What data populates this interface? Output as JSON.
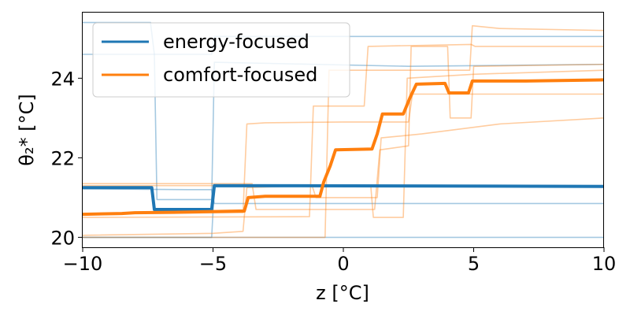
{
  "chart_data": {
    "type": "line",
    "xlabel": "z [°C]",
    "ylabel": "θ₂* [°C]",
    "xlim": [
      -10,
      10
    ],
    "ylim": [
      19.75,
      25.65
    ],
    "x_ticks": [
      -10,
      -5,
      0,
      5,
      10
    ],
    "x_tick_labels": [
      "−10",
      "−5",
      "0",
      "5",
      "10"
    ],
    "y_ticks": [
      20,
      22,
      24
    ],
    "y_tick_labels": [
      "20",
      "22",
      "24"
    ],
    "grid": false,
    "legend_position": "top-left",
    "colors": {
      "energy": "#1f77b4",
      "comfort": "#ff7f0e"
    },
    "series": [
      {
        "name": "energy-focused",
        "role": "mean",
        "group": "energy",
        "points": [
          [
            -10,
            21.25
          ],
          [
            -7.35,
            21.25
          ],
          [
            -7.25,
            20.7
          ],
          [
            -5.05,
            20.7
          ],
          [
            -4.95,
            21.3
          ],
          [
            10,
            21.28
          ]
        ]
      },
      {
        "name": "comfort-focused",
        "role": "mean",
        "group": "comfort",
        "points": [
          [
            -10,
            20.58
          ],
          [
            -8.5,
            20.6
          ],
          [
            -8,
            20.62
          ],
          [
            -6.5,
            20.63
          ],
          [
            -4,
            20.66
          ],
          [
            -3.8,
            20.66
          ],
          [
            -3.65,
            21.0
          ],
          [
            -3,
            21.03
          ],
          [
            -0.9,
            21.03
          ],
          [
            -0.75,
            21.4
          ],
          [
            -0.5,
            21.8
          ],
          [
            -0.3,
            22.2
          ],
          [
            1.1,
            22.22
          ],
          [
            1.3,
            22.6
          ],
          [
            1.5,
            23.1
          ],
          [
            2.3,
            23.1
          ],
          [
            2.55,
            23.5
          ],
          [
            2.8,
            23.85
          ],
          [
            3.9,
            23.87
          ],
          [
            4.05,
            23.63
          ],
          [
            4.8,
            23.63
          ],
          [
            4.95,
            23.93
          ],
          [
            7,
            23.93
          ],
          [
            10,
            23.96
          ]
        ]
      },
      {
        "role": "sample",
        "group": "energy",
        "points": [
          [
            -10,
            25.4
          ],
          [
            -7.4,
            25.4
          ],
          [
            -7.25,
            24.6
          ],
          [
            -7.15,
            20.95
          ],
          [
            -5.05,
            20.95
          ],
          [
            -4.95,
            24.4
          ],
          [
            2.5,
            24.3
          ],
          [
            10,
            24.35
          ]
        ]
      },
      {
        "role": "sample",
        "group": "energy",
        "points": [
          [
            -10,
            24.6
          ],
          [
            -5.05,
            24.6
          ],
          [
            -4.95,
            25.05
          ],
          [
            10,
            25.05
          ]
        ]
      },
      {
        "role": "sample",
        "group": "energy",
        "points": [
          [
            -10,
            20.0
          ],
          [
            -5.05,
            20.0
          ],
          [
            -4.95,
            21.32
          ],
          [
            10,
            21.3
          ]
        ]
      },
      {
        "role": "sample",
        "group": "energy",
        "points": [
          [
            -10,
            21.22
          ],
          [
            -6,
            21.2
          ],
          [
            -5.05,
            21.2
          ],
          [
            -4.95,
            20.85
          ],
          [
            10,
            20.85
          ]
        ]
      },
      {
        "role": "sample",
        "group": "energy",
        "points": [
          [
            -10,
            20.0
          ],
          [
            10,
            20.0
          ]
        ]
      },
      {
        "role": "sample",
        "group": "comfort",
        "points": [
          [
            -10,
            20.6
          ],
          [
            -3.85,
            20.62
          ],
          [
            -3.7,
            22.85
          ],
          [
            -3,
            22.88
          ],
          [
            0,
            22.9
          ],
          [
            2.5,
            22.9
          ],
          [
            2.65,
            23.6
          ],
          [
            10,
            23.6
          ]
        ]
      },
      {
        "role": "sample",
        "group": "comfort",
        "points": [
          [
            -10,
            20.0
          ],
          [
            -0.7,
            20.0
          ],
          [
            -0.55,
            24.2
          ],
          [
            4.85,
            24.2
          ],
          [
            4.95,
            25.32
          ],
          [
            6,
            25.25
          ],
          [
            10,
            25.2
          ]
        ]
      },
      {
        "role": "sample",
        "group": "comfort",
        "points": [
          [
            -10,
            21.35
          ],
          [
            -5,
            21.35
          ],
          [
            -3.5,
            21.35
          ],
          [
            -3.35,
            20.7
          ],
          [
            0,
            20.7
          ],
          [
            1.2,
            20.7
          ],
          [
            1.4,
            22.2
          ],
          [
            2.5,
            22.3
          ],
          [
            2.6,
            24.8
          ],
          [
            4,
            24.8
          ],
          [
            4.1,
            23.0
          ],
          [
            4.9,
            23.0
          ],
          [
            5,
            24.3
          ],
          [
            10,
            24.35
          ]
        ]
      },
      {
        "role": "sample",
        "group": "comfort",
        "points": [
          [
            -10,
            20.05
          ],
          [
            -5,
            20.1
          ],
          [
            -3.85,
            20.15
          ],
          [
            -3.7,
            21.25
          ],
          [
            -1.2,
            21.3
          ],
          [
            -1.05,
            21.0
          ],
          [
            1.3,
            21.0
          ],
          [
            1.45,
            22.5
          ],
          [
            3,
            22.6
          ],
          [
            6,
            22.85
          ],
          [
            10,
            23.0
          ]
        ]
      },
      {
        "role": "sample",
        "group": "comfort",
        "points": [
          [
            -10,
            21.3
          ],
          [
            -2,
            21.3
          ],
          [
            1.05,
            21.3
          ],
          [
            1.15,
            20.5
          ],
          [
            2.3,
            20.5
          ],
          [
            2.45,
            24.0
          ],
          [
            5,
            24.1
          ],
          [
            10,
            24.2
          ]
        ]
      },
      {
        "role": "sample",
        "group": "comfort",
        "points": [
          [
            -10,
            20.5
          ],
          [
            -1.3,
            20.52
          ],
          [
            -1.15,
            23.3
          ],
          [
            0.8,
            23.3
          ],
          [
            0.95,
            24.8
          ],
          [
            4.9,
            24.85
          ],
          [
            5.05,
            24.8
          ],
          [
            10,
            24.8
          ]
        ]
      }
    ]
  }
}
